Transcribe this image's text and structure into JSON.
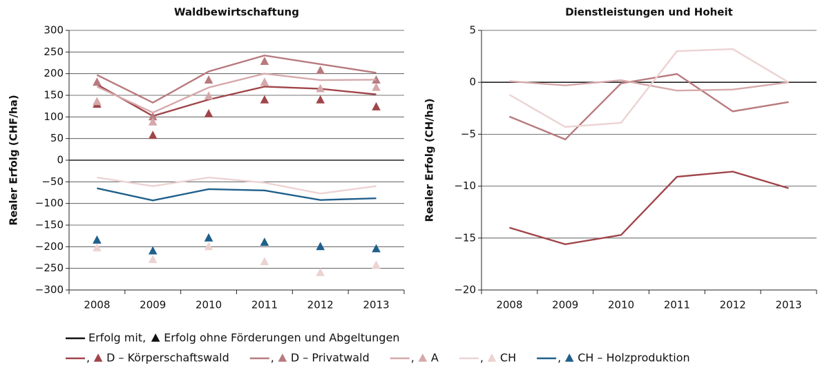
{
  "chart_data": [
    {
      "type": "line",
      "title": "Waldbewirtschaftung",
      "y_label": "Realer Erfolg (CHF/ha)",
      "categories": [
        "2008",
        "2009",
        "2010",
        "2011",
        "2012",
        "2013"
      ],
      "ylim": [
        -300,
        300
      ],
      "yticks": [
        {
          "value": -300,
          "label": "−300"
        },
        {
          "value": -250,
          "label": "−250"
        },
        {
          "value": -200,
          "label": "−200"
        },
        {
          "value": -150,
          "label": "−150"
        },
        {
          "value": -100,
          "label": "−100"
        },
        {
          "value": -50,
          "label": "−50"
        },
        0,
        50,
        100,
        150,
        200,
        250,
        300
      ],
      "grid": true,
      "series": [
        {
          "name": "D – Körperschaftswald",
          "color": "#a0454a",
          "values": [
            175,
            102,
            140,
            170,
            165,
            152
          ],
          "markers": [
            129,
            57,
            107,
            139,
            139,
            123
          ]
        },
        {
          "name": "D – Privatwald",
          "color": "#b87a7e",
          "values": [
            197,
            133,
            205,
            242,
            222,
            202
          ],
          "markers": [
            180,
            100,
            185,
            228,
            207,
            185
          ]
        },
        {
          "name": "A",
          "color": "#d6a8aa",
          "values": [
            170,
            110,
            168,
            200,
            185,
            186
          ],
          "markers": [
            135,
            88,
            148,
            180,
            165,
            168
          ]
        },
        {
          "name": "CH",
          "color": "#ecd3d2",
          "values": [
            -40,
            -60,
            -40,
            -52,
            -77,
            -60
          ],
          "markers": [
            -203,
            -230,
            -200,
            -235,
            -260,
            -243
          ]
        },
        {
          "name": "CH – Holzproduktion",
          "color": "#1f5f8b",
          "values": [
            -65,
            -93,
            -67,
            -70,
            -92,
            -88
          ],
          "markers": [
            -185,
            -210,
            -180,
            -190,
            -200,
            -205
          ]
        }
      ]
    },
    {
      "type": "line",
      "title": "Dienstleistungen und Hoheit",
      "y_label": "Realer Erfolg (CH/ha)",
      "categories": [
        "2008",
        "2009",
        "2010",
        "2011",
        "2012",
        "2013"
      ],
      "ylim": [
        -20,
        5
      ],
      "yticks": [
        {
          "value": -20,
          "label": "−20"
        },
        {
          "value": -15,
          "label": "−15"
        },
        {
          "value": -10,
          "label": "−10"
        },
        {
          "value": -5,
          "label": "−5"
        },
        0,
        5
      ],
      "grid": true,
      "series": [
        {
          "color": "#a0454a",
          "values": [
            -14,
            -15.6,
            -14.7,
            -9.1,
            -8.6,
            -10.2
          ]
        },
        {
          "color": "#b87a7e",
          "values": [
            -3.3,
            -5.5,
            -0.1,
            0.8,
            -2.8,
            -1.9
          ]
        },
        {
          "color": "#d6a8aa",
          "values": [
            0.1,
            -0.3,
            0.2,
            -0.8,
            -0.7,
            0.0
          ]
        },
        {
          "color": "#ecd3d2",
          "values": [
            -1.2,
            -4.3,
            -3.9,
            3.0,
            3.2,
            0.0
          ]
        }
      ]
    }
  ],
  "legend": {
    "line": "Erfolg mit,",
    "marker": "Erfolg ohne Förderungen und Abgeltungen",
    "separator": ",",
    "color": "#111111"
  }
}
